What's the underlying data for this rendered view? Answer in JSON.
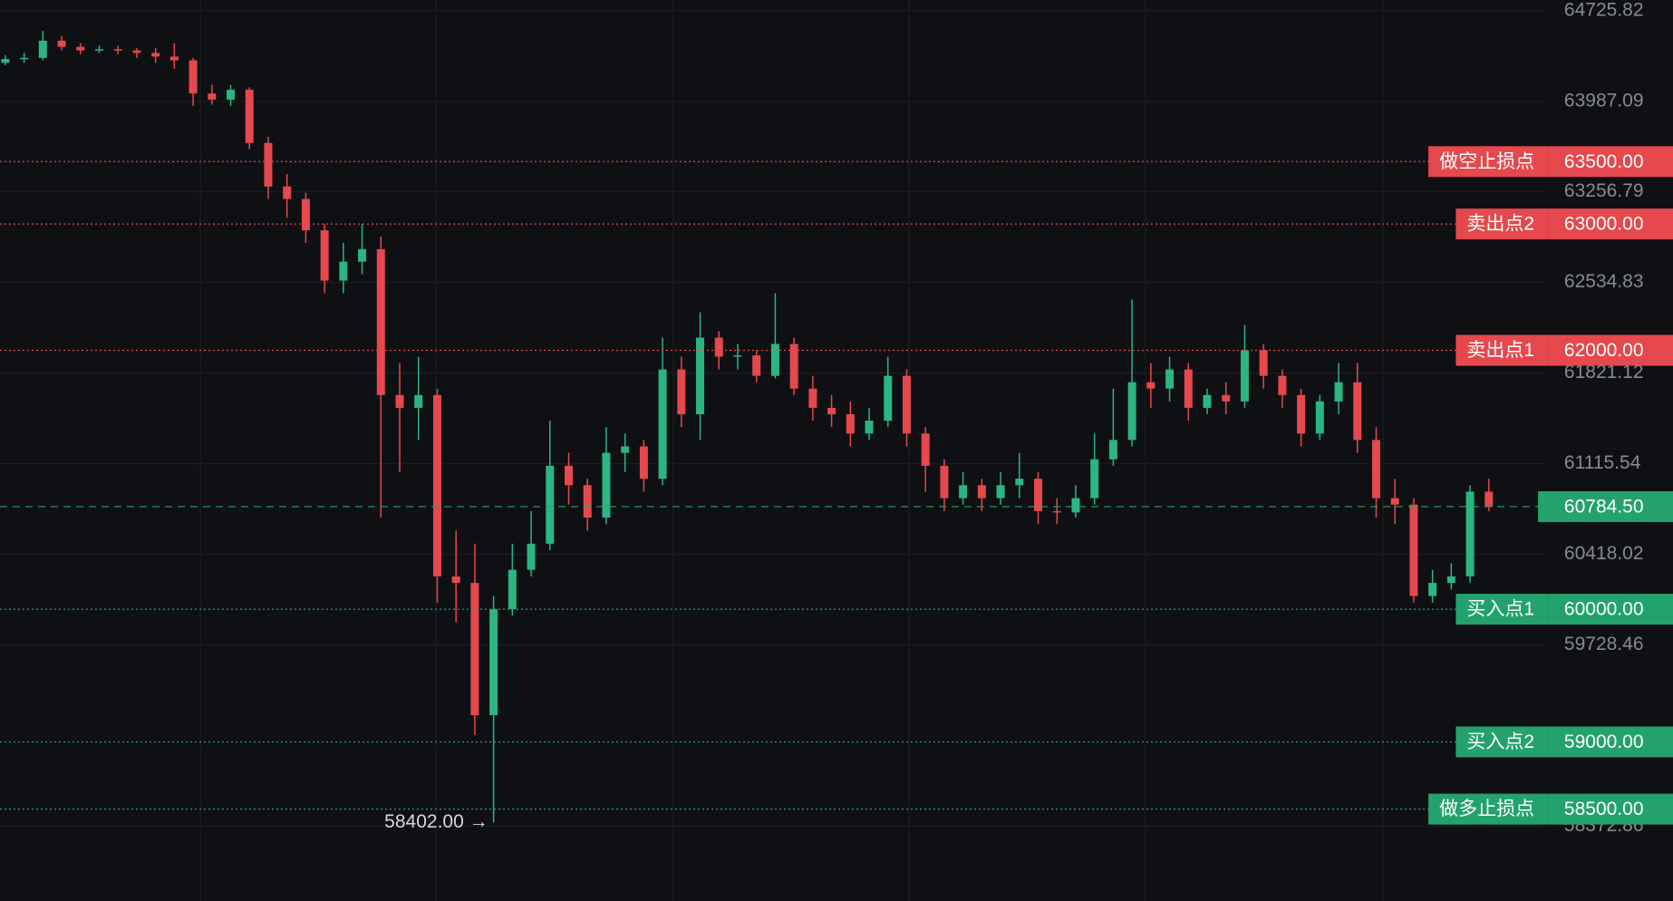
{
  "chart_data": {
    "type": "candlestick",
    "log": true,
    "ylim": [
      57823,
      64813
    ],
    "yticks": [
      64725.82,
      63987.09,
      63256.79,
      62534.83,
      61821.12,
      61115.54,
      60418.02,
      59728.46,
      58372.86
    ],
    "up_color": "#2bb583",
    "down_color": "#e5484d",
    "opens": [
      64300,
      64330,
      64340,
      64480,
      64430,
      64400,
      64410,
      64400,
      64380,
      64350,
      64320,
      64050,
      64000,
      64080,
      63650,
      63300,
      63200,
      62950,
      62550,
      62700,
      62800,
      61650,
      61550,
      61650,
      60250,
      60200,
      59200,
      60000,
      60300,
      60500,
      61100,
      60950,
      60700,
      61200,
      61250,
      61000,
      61850,
      61500,
      62100,
      61950,
      61960,
      61800,
      62050,
      61700,
      61550,
      61500,
      61350,
      61450,
      61800,
      61350,
      61100,
      60850,
      60950,
      60850,
      60950,
      61000,
      60750,
      60740,
      60850,
      61150,
      61300,
      61750,
      61700,
      61850,
      61550,
      61650,
      61600,
      62000,
      61800,
      61650,
      61350,
      61600,
      61750,
      61300,
      60850,
      60800,
      60100,
      60200,
      60250,
      60900
    ],
    "highs": [
      64360,
      64380,
      64560,
      64520,
      64460,
      64440,
      64440,
      64420,
      64420,
      64460,
      64340,
      64120,
      64120,
      64100,
      63700,
      63400,
      63250,
      63000,
      62850,
      63000,
      62900,
      61900,
      61950,
      61700,
      60600,
      60500,
      60100,
      60500,
      60750,
      61450,
      61200,
      61000,
      61400,
      61350,
      61300,
      62100,
      61950,
      62300,
      62150,
      62050,
      62000,
      62450,
      62100,
      61800,
      61650,
      61600,
      61550,
      61950,
      61850,
      61400,
      61150,
      61050,
      61000,
      61050,
      61200,
      61050,
      60850,
      60950,
      61350,
      61700,
      62400,
      61900,
      61950,
      61900,
      61700,
      61750,
      62200,
      62050,
      61850,
      61700,
      61650,
      61900,
      61900,
      61400,
      61000,
      60850,
      60300,
      60350,
      60950,
      61000
    ],
    "lows": [
      64280,
      64300,
      64320,
      64400,
      64370,
      64380,
      64370,
      64340,
      64300,
      64250,
      63950,
      63960,
      63950,
      63600,
      63200,
      63050,
      62850,
      62450,
      62450,
      62600,
      60700,
      61050,
      61300,
      60050,
      59900,
      59050,
      58402,
      59950,
      60250,
      60450,
      60800,
      60600,
      60650,
      61050,
      60900,
      60950,
      61400,
      61300,
      61850,
      61850,
      61750,
      61780,
      61650,
      61450,
      61400,
      61250,
      61300,
      61400,
      61250,
      60900,
      60750,
      60800,
      60750,
      60800,
      60850,
      60650,
      60650,
      60700,
      60800,
      61100,
      61250,
      61550,
      61600,
      61450,
      61500,
      61500,
      61550,
      61700,
      61550,
      61250,
      61300,
      61500,
      61200,
      60700,
      60650,
      60050,
      60050,
      60150,
      60200,
      60750
    ],
    "closes": [
      64330,
      64340,
      64480,
      64430,
      64400,
      64410,
      64400,
      64380,
      64350,
      64320,
      64050,
      64000,
      64080,
      63650,
      63300,
      63200,
      62950,
      62550,
      62700,
      62800,
      61650,
      61550,
      61650,
      60250,
      60200,
      59200,
      60000,
      60300,
      60500,
      61100,
      60950,
      60700,
      61200,
      61250,
      61000,
      61850,
      61500,
      62100,
      61950,
      61960,
      61800,
      62050,
      61700,
      61550,
      61500,
      61350,
      61450,
      61800,
      61350,
      61100,
      60850,
      60950,
      60850,
      60950,
      61000,
      60750,
      60740,
      60850,
      61150,
      61300,
      61750,
      61700,
      61850,
      61550,
      61650,
      61600,
      62000,
      61800,
      61650,
      61350,
      61600,
      61750,
      61300,
      60850,
      60800,
      60100,
      60200,
      60250,
      60900,
      60784.5
    ],
    "levels": [
      {
        "name": "做空止损点",
        "value": 63500,
        "label": "63500.00",
        "color": "#e5484d"
      },
      {
        "name": "卖出点2",
        "value": 63000,
        "label": "63000.00",
        "color": "#e5484d"
      },
      {
        "name": "卖出点1",
        "value": 62000,
        "label": "62000.00",
        "color": "#e5484d"
      },
      {
        "name": "买入点1",
        "value": 60000,
        "label": "60000.00",
        "color": "#23a26d"
      },
      {
        "name": "买入点2",
        "value": 59000,
        "label": "59000.00",
        "color": "#23a26d"
      },
      {
        "name": "做多止损点",
        "value": 58500,
        "label": "58500.00",
        "color": "#23a26d"
      }
    ],
    "last_price": {
      "value": 60784.5,
      "label": "60784.50",
      "color": "#23a26d"
    },
    "low_marker": {
      "value": 58402,
      "label": "58402.00 →"
    }
  }
}
